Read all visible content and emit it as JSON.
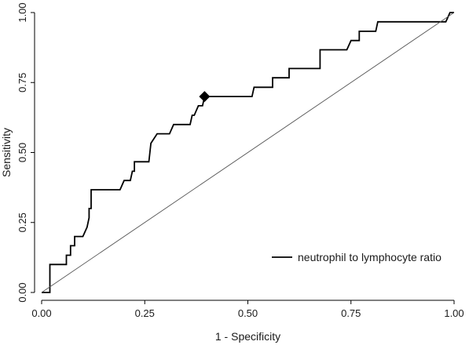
{
  "chart_data": {
    "type": "line",
    "xlabel": "1 - Specificity",
    "ylabel": "Sensitivity",
    "xlim": [
      0,
      1
    ],
    "ylim": [
      0,
      1
    ],
    "x_ticks": [
      0,
      0.25,
      0.5,
      0.75,
      1
    ],
    "x_tick_labels": [
      "0.00",
      "0.25",
      "0.50",
      "0.75",
      "1.00"
    ],
    "y_ticks": [
      0,
      0.25,
      0.5,
      0.75,
      1
    ],
    "y_tick_labels": [
      "0.00",
      "0.25",
      "0.50",
      "0.75",
      "1.00"
    ],
    "grid": false,
    "legend_position": "bottom-right",
    "series": [
      {
        "name": "neutrophil to lymphocyte ratio",
        "color": "#000000",
        "style": "step",
        "points": [
          [
            0,
            0
          ],
          [
            0.02,
            0
          ],
          [
            0.02,
            0.1
          ],
          [
            0.06,
            0.1
          ],
          [
            0.06,
            0.133
          ],
          [
            0.07,
            0.133
          ],
          [
            0.07,
            0.167
          ],
          [
            0.08,
            0.167
          ],
          [
            0.08,
            0.2
          ],
          [
            0.1,
            0.2
          ],
          [
            0.11,
            0.233
          ],
          [
            0.115,
            0.267
          ],
          [
            0.115,
            0.3
          ],
          [
            0.12,
            0.3
          ],
          [
            0.12,
            0.367
          ],
          [
            0.19,
            0.367
          ],
          [
            0.2,
            0.4
          ],
          [
            0.215,
            0.4
          ],
          [
            0.22,
            0.433
          ],
          [
            0.225,
            0.433
          ],
          [
            0.225,
            0.467
          ],
          [
            0.26,
            0.467
          ],
          [
            0.265,
            0.533
          ],
          [
            0.28,
            0.567
          ],
          [
            0.31,
            0.567
          ],
          [
            0.32,
            0.6
          ],
          [
            0.36,
            0.6
          ],
          [
            0.365,
            0.633
          ],
          [
            0.37,
            0.633
          ],
          [
            0.38,
            0.667
          ],
          [
            0.39,
            0.667
          ],
          [
            0.395,
            0.7
          ],
          [
            0.41,
            0.7
          ],
          [
            0.51,
            0.7
          ],
          [
            0.515,
            0.733
          ],
          [
            0.56,
            0.733
          ],
          [
            0.56,
            0.767
          ],
          [
            0.6,
            0.767
          ],
          [
            0.6,
            0.8
          ],
          [
            0.675,
            0.8
          ],
          [
            0.675,
            0.867
          ],
          [
            0.74,
            0.867
          ],
          [
            0.75,
            0.9
          ],
          [
            0.77,
            0.9
          ],
          [
            0.77,
            0.933
          ],
          [
            0.81,
            0.933
          ],
          [
            0.815,
            0.967
          ],
          [
            0.98,
            0.967
          ],
          [
            0.99,
            1
          ],
          [
            1,
            1
          ]
        ]
      },
      {
        "name": "",
        "color": "#555555",
        "style": "reference-diagonal",
        "points": [
          [
            0,
            0
          ],
          [
            1,
            1
          ]
        ]
      }
    ],
    "markers": [
      {
        "shape": "diamond",
        "x": 0.395,
        "y": 0.7,
        "color": "#000000"
      }
    ]
  }
}
